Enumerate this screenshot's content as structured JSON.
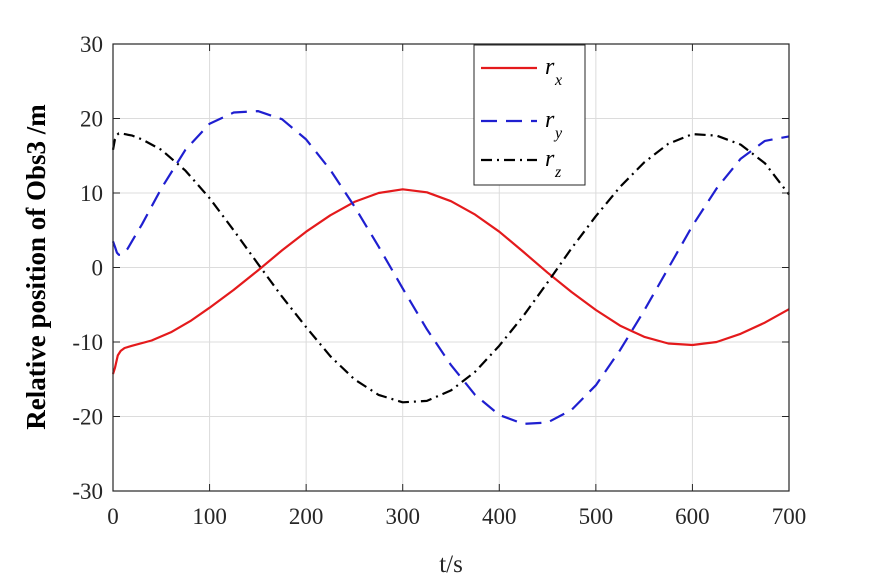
{
  "chart_data": {
    "type": "line",
    "xlabel": "t/s",
    "ylabel": "Relative position of Obs3 /m",
    "xlim": [
      0,
      700
    ],
    "ylim": [
      -30,
      30
    ],
    "xticks": [
      "0",
      "100",
      "200",
      "300",
      "400",
      "500",
      "600",
      "700"
    ],
    "yticks": [
      "30",
      "20",
      "10",
      "0",
      "-10",
      "-20",
      "-30"
    ],
    "grid": true,
    "legend": {
      "placement": "top-center"
    },
    "series": [
      {
        "name": "r",
        "subscript": "x",
        "color": "#e41a1c",
        "dash": "solid",
        "x": [
          0,
          2,
          5,
          8,
          12,
          20,
          40,
          60,
          80,
          100,
          125,
          150,
          175,
          200,
          225,
          250,
          275,
          300,
          325,
          350,
          375,
          400,
          425,
          450,
          475,
          500,
          525,
          550,
          575,
          600,
          625,
          650,
          675,
          700
        ],
        "y": [
          -14.3,
          -13.5,
          -11.8,
          -11.2,
          -10.8,
          -10.5,
          -9.8,
          -8.7,
          -7.2,
          -5.4,
          -3.0,
          -0.4,
          2.3,
          4.8,
          7.0,
          8.8,
          10.0,
          10.5,
          10.1,
          8.9,
          7.1,
          4.8,
          2.1,
          -0.7,
          -3.3,
          -5.7,
          -7.8,
          -9.3,
          -10.2,
          -10.4,
          -10.0,
          -8.9,
          -7.4,
          -5.6
        ]
      },
      {
        "name": "r",
        "subscript": "y",
        "color": "#1f1fd0",
        "dash": "dashed",
        "x": [
          0,
          2,
          4,
          6,
          8,
          10,
          15,
          20,
          30,
          50,
          75,
          100,
          125,
          150,
          175,
          200,
          225,
          250,
          275,
          300,
          325,
          350,
          375,
          400,
          425,
          450,
          475,
          500,
          525,
          550,
          575,
          600,
          625,
          650,
          675,
          700
        ],
        "y": [
          3.5,
          2.8,
          2.0,
          1.7,
          1.7,
          1.8,
          2.5,
          3.6,
          5.8,
          10.6,
          15.8,
          19.3,
          20.8,
          21.0,
          19.9,
          17.2,
          13.1,
          8.2,
          2.8,
          -2.8,
          -8.3,
          -13.1,
          -17.1,
          -19.8,
          -21.0,
          -20.8,
          -19.1,
          -15.8,
          -11.1,
          -5.8,
          -0.1,
          5.6,
          10.6,
          14.6,
          17.0,
          17.6
        ]
      },
      {
        "name": "r",
        "subscript": "z",
        "color": "#000000",
        "dash": "dashdot",
        "x": [
          0,
          2,
          4,
          6,
          8,
          12,
          20,
          30,
          50,
          75,
          100,
          125,
          150,
          175,
          200,
          225,
          250,
          275,
          300,
          325,
          350,
          375,
          400,
          425,
          450,
          475,
          500,
          525,
          550,
          575,
          600,
          625,
          650,
          675,
          700
        ],
        "y": [
          15.8,
          17.2,
          17.8,
          18.0,
          18.0,
          17.9,
          17.7,
          17.2,
          15.8,
          13.0,
          9.3,
          5.0,
          0.5,
          -3.9,
          -8.0,
          -11.9,
          -15.0,
          -17.1,
          -18.1,
          -17.9,
          -16.5,
          -14.0,
          -10.5,
          -6.5,
          -2.0,
          2.6,
          6.9,
          10.8,
          14.1,
          16.6,
          17.9,
          17.7,
          16.5,
          14.0,
          9.8
        ]
      }
    ]
  }
}
